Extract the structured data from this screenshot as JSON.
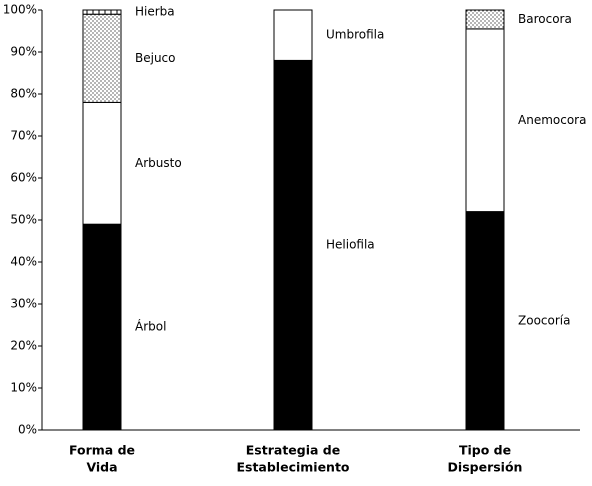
{
  "chart_data": {
    "type": "stacked-bar",
    "bars": [
      {
        "category": [
          "Forma de",
          "Vida"
        ],
        "segments": [
          {
            "name": "Árbol",
            "value": 49,
            "pattern": "solid"
          },
          {
            "name": "Arbusto",
            "value": 29,
            "pattern": "none"
          },
          {
            "name": "Bejuco",
            "value": 21,
            "pattern": "dots"
          },
          {
            "name": "Hierba",
            "value": 1,
            "pattern": "vlines"
          }
        ]
      },
      {
        "category": [
          "Estrategia de",
          "Establecimiento"
        ],
        "segments": [
          {
            "name": "Heliofila",
            "value": 88,
            "pattern": "solid"
          },
          {
            "name": "Umbrofila",
            "value": 12,
            "pattern": "none"
          }
        ]
      },
      {
        "category": [
          "Tipo de",
          "Dispersión"
        ],
        "segments": [
          {
            "name": "Zoocoría",
            "value": 52,
            "pattern": "solid"
          },
          {
            "name": "Anemocora",
            "value": 43.5,
            "pattern": "none"
          },
          {
            "name": "Barocora",
            "value": 4.5,
            "pattern": "dots"
          }
        ]
      }
    ],
    "ylim": [
      0,
      100
    ],
    "yticks": [
      {
        "value": 0,
        "label": "0%"
      },
      {
        "value": 10,
        "label": "10%"
      },
      {
        "value": 20,
        "label": "20%"
      },
      {
        "value": 30,
        "label": "30%"
      },
      {
        "value": 40,
        "label": "40%"
      },
      {
        "value": 50,
        "label": "50%"
      },
      {
        "value": 60,
        "label": "60%"
      },
      {
        "value": 70,
        "label": "70%"
      },
      {
        "value": 80,
        "label": "80%"
      },
      {
        "value": 90,
        "label": "90%"
      },
      {
        "value": 100,
        "label": "100%"
      }
    ]
  }
}
